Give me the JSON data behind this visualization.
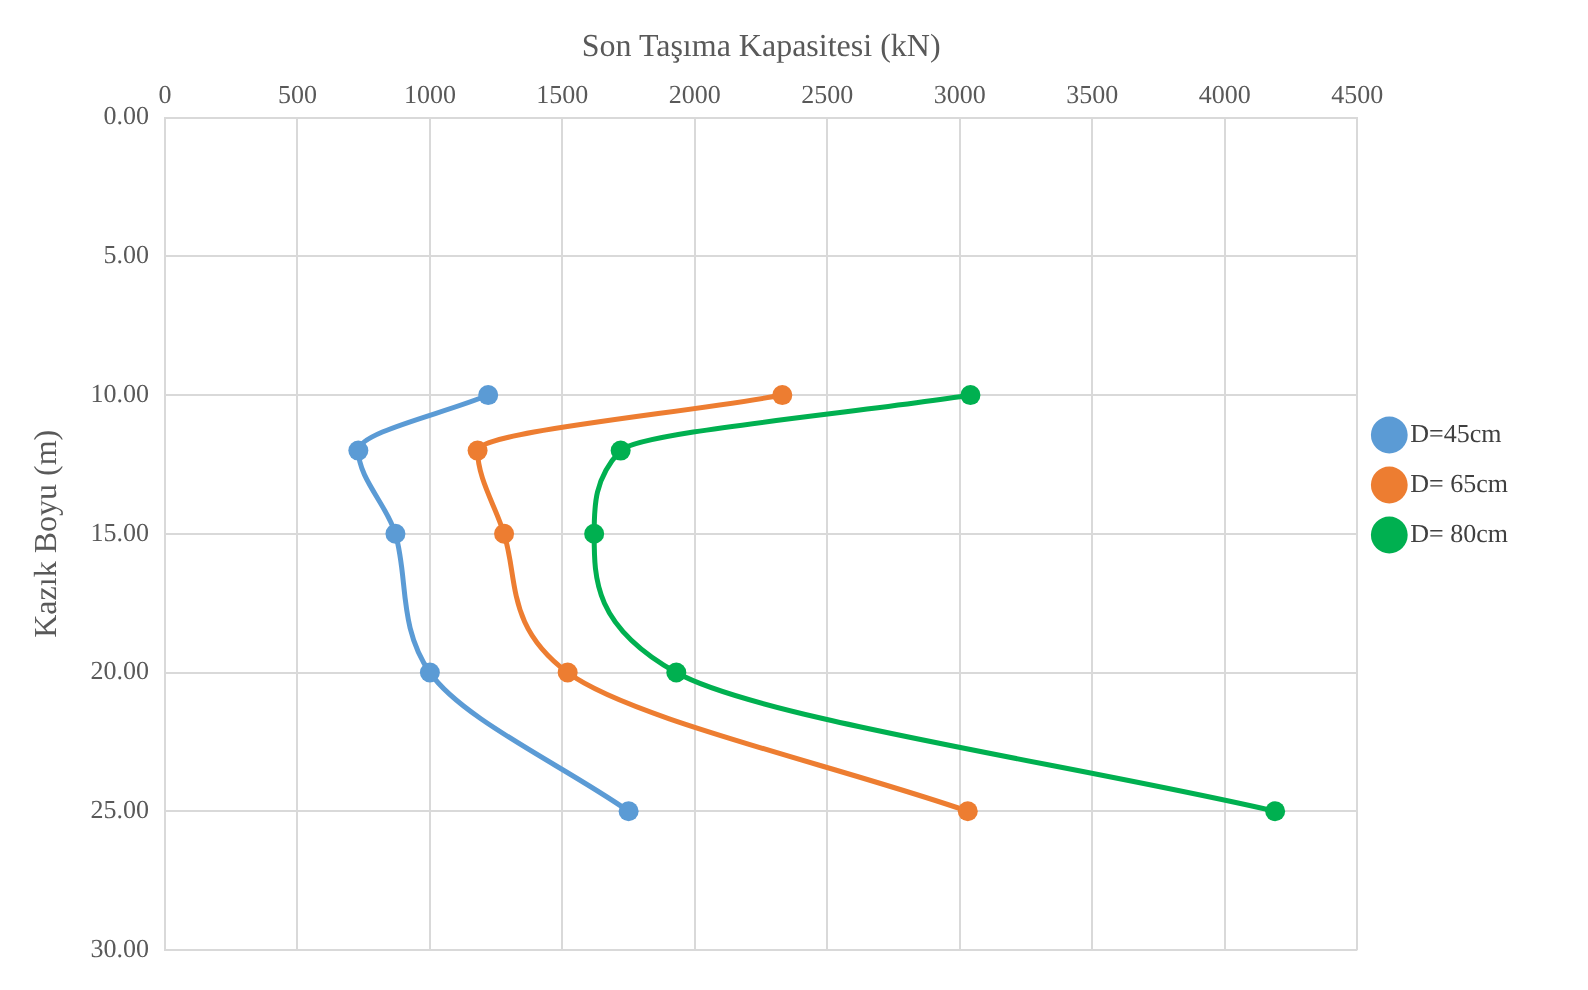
{
  "chart_data": {
    "type": "line",
    "xlabel": "Son Taşıma Kapasitesi (kN)",
    "ylabel": "Kazık Boyu (m)",
    "xlim": [
      0,
      4500
    ],
    "xticks": [
      0,
      500,
      1000,
      1500,
      2000,
      2500,
      3000,
      3500,
      4000,
      4500
    ],
    "ylim": [
      30,
      0
    ],
    "yticks": [
      {
        "value": 0,
        "label": "0.00"
      },
      {
        "value": 5,
        "label": "5.00"
      },
      {
        "value": 10,
        "label": "10.00"
      },
      {
        "value": 15,
        "label": "15.00"
      },
      {
        "value": 20,
        "label": "20.00"
      },
      {
        "value": 25,
        "label": "25.00"
      },
      {
        "value": 30,
        "label": "30.00"
      }
    ],
    "grid": true,
    "legend": "right",
    "marker": "circle",
    "line_style": "solid",
    "series": [
      {
        "name": "D=45cm",
        "color": "#5b9bd5",
        "x": [
          1220,
          730,
          870,
          1000,
          1750
        ],
        "values": [
          10,
          12,
          15,
          20,
          25
        ]
      },
      {
        "name": "D= 65cm",
        "color": "#ed7d31",
        "x": [
          2330,
          1180,
          1280,
          1520,
          3030
        ],
        "values": [
          10,
          12,
          15,
          20,
          25
        ]
      },
      {
        "name": "D= 80cm",
        "color": "#00b050",
        "x": [
          3040,
          1720,
          1620,
          1930,
          4190
        ],
        "values": [
          10,
          12,
          15,
          20,
          25
        ]
      }
    ]
  }
}
